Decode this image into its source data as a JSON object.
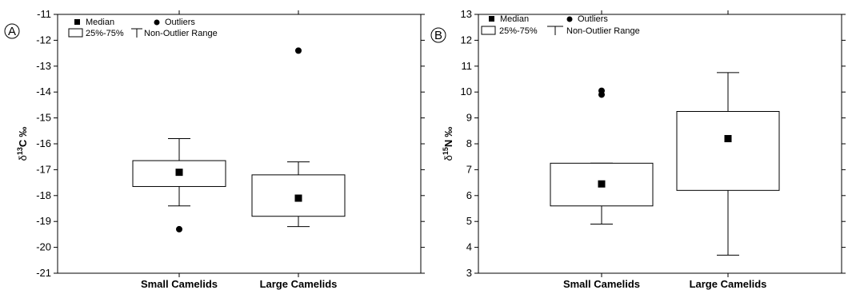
{
  "chart_data": [
    {
      "type": "box",
      "panel_label": "A",
      "ylabel": {
        "prefix": "δ",
        "sup": "13",
        "main": "C",
        "unit": "‰"
      },
      "ylim": [
        -21,
        -11
      ],
      "yticks": [
        -11,
        -12,
        -13,
        -14,
        -15,
        -16,
        -17,
        -18,
        -19,
        -20,
        -21
      ],
      "legend": {
        "median": "Median",
        "outliers": "Outliers",
        "box": "25%-75%",
        "range": "Non-Outlier Range",
        "placement": "top-left"
      },
      "grid": false,
      "categories": [
        "Small Camelids",
        "Large Camelids"
      ],
      "boxes": [
        {
          "category": "Small Camelids",
          "median": -17.1,
          "q1": -17.65,
          "q3": -16.65,
          "whisker_low": -18.4,
          "whisker_high": -15.8,
          "outliers": [
            -19.3
          ]
        },
        {
          "category": "Large Camelids",
          "median": -18.1,
          "q1": -18.8,
          "q3": -17.2,
          "whisker_low": -19.2,
          "whisker_high": -16.7,
          "outliers": [
            -12.4
          ]
        }
      ]
    },
    {
      "type": "box",
      "panel_label": "B",
      "ylabel": {
        "prefix": "δ",
        "sup": "15",
        "main": "N",
        "unit": "‰"
      },
      "ylim": [
        3,
        13
      ],
      "yticks": [
        13,
        12,
        11,
        10,
        9,
        8,
        7,
        6,
        5,
        4,
        3
      ],
      "legend": {
        "median": "Median",
        "outliers": "Outliers",
        "box": "25%-75%",
        "range": "Non-Outlier Range",
        "placement": "top-left"
      },
      "grid": false,
      "categories": [
        "Small Camelids",
        "Large Camelids"
      ],
      "boxes": [
        {
          "category": "Small Camelids",
          "median": 6.45,
          "q1": 5.6,
          "q3": 7.25,
          "whisker_low": 4.9,
          "whisker_high": 7.25,
          "outliers": [
            9.9,
            10.05
          ]
        },
        {
          "category": "Large Camelids",
          "median": 8.2,
          "q1": 6.2,
          "q3": 9.25,
          "whisker_low": 3.7,
          "whisker_high": 10.75,
          "outliers": []
        }
      ]
    }
  ]
}
